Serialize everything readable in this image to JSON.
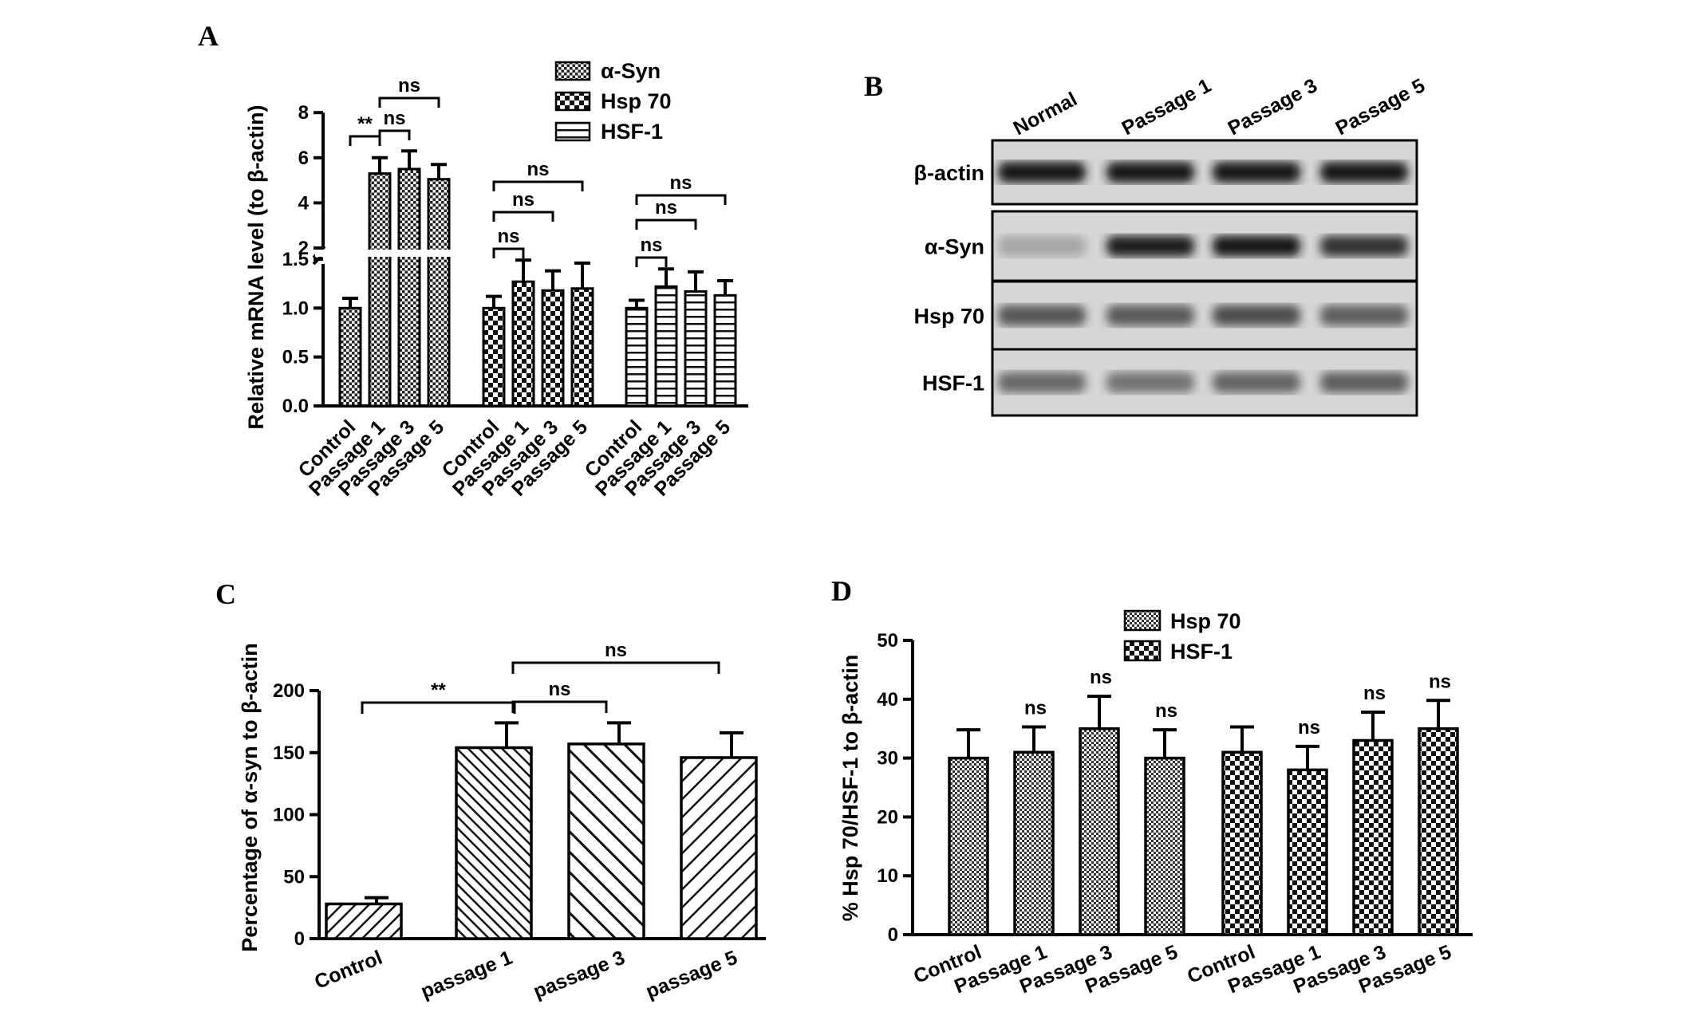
{
  "panels": {
    "A": "A",
    "B": "B",
    "C": "C",
    "D": "D"
  },
  "chart_data": [
    {
      "panel": "A",
      "type": "bar",
      "ylabel": "Relative mRNA level (to β-actin)",
      "y_axis_break": true,
      "y_ticks_lower": [
        "0.0",
        "0.5",
        "1.0",
        "1.5"
      ],
      "y_ticks_upper": [
        "2",
        "4",
        "6",
        "8"
      ],
      "categories": [
        "Control",
        "Passage 1",
        "Passage 3",
        "Passage 5"
      ],
      "legend": [
        "α-Syn",
        "Hsp 70",
        "HSF-1"
      ],
      "series": [
        {
          "name": "α-Syn",
          "values": [
            1.0,
            5.3,
            5.5,
            5.05
          ],
          "errors": [
            0.1,
            0.7,
            0.8,
            0.65
          ]
        },
        {
          "name": "Hsp 70",
          "values": [
            1.0,
            1.27,
            1.18,
            1.2
          ],
          "errors": [
            0.12,
            0.22,
            0.2,
            0.26
          ]
        },
        {
          "name": "HSF-1",
          "values": [
            1.0,
            1.22,
            1.17,
            1.13
          ],
          "errors": [
            0.08,
            0.18,
            0.2,
            0.15
          ]
        }
      ],
      "significance": [
        {
          "series": 0,
          "from": 0,
          "to": 1,
          "label": "**"
        },
        {
          "series": 0,
          "from": 1,
          "to": 2,
          "label": "ns"
        },
        {
          "series": 0,
          "from": 1,
          "to": 3,
          "label": "ns"
        },
        {
          "series": 1,
          "from": 0,
          "to": 1,
          "label": "ns"
        },
        {
          "series": 1,
          "from": 0,
          "to": 2,
          "label": "ns"
        },
        {
          "series": 1,
          "from": 0,
          "to": 3,
          "label": "ns"
        },
        {
          "series": 2,
          "from": 0,
          "to": 1,
          "label": "ns"
        },
        {
          "series": 2,
          "from": 0,
          "to": 2,
          "label": "ns"
        },
        {
          "series": 2,
          "from": 0,
          "to": 3,
          "label": "ns"
        }
      ]
    },
    {
      "panel": "B",
      "type": "table",
      "lanes": [
        "Normal",
        "Passage 1",
        "Passage 3",
        "Passage 5"
      ],
      "rows": [
        "β-actin",
        "α-Syn",
        "Hsp 70",
        "HSF-1"
      ],
      "band_intensity": [
        [
          0.95,
          0.95,
          0.95,
          0.95
        ],
        [
          0.18,
          0.9,
          0.92,
          0.8
        ],
        [
          0.6,
          0.58,
          0.65,
          0.55
        ],
        [
          0.5,
          0.45,
          0.52,
          0.55
        ]
      ]
    },
    {
      "panel": "C",
      "type": "bar",
      "ylabel": "Percentage of  α-syn  to  β-actin",
      "ylim": [
        0,
        200
      ],
      "y_ticks": [
        "0",
        "50",
        "100",
        "150",
        "200"
      ],
      "categories": [
        "Control",
        "passage 1",
        "passage 3",
        "passage 5"
      ],
      "values": [
        28,
        154,
        157,
        146
      ],
      "errors": [
        5,
        20,
        17,
        20
      ],
      "significance": [
        {
          "from": 0,
          "to": 1,
          "label": "**"
        },
        {
          "from": 1,
          "to": 2,
          "label": "ns"
        },
        {
          "from": 1,
          "to": 3,
          "label": "ns"
        }
      ]
    },
    {
      "panel": "D",
      "type": "bar",
      "ylabel": "% Hsp 70/HSF-1 to  β-actin",
      "ylim": [
        0,
        50
      ],
      "y_ticks": [
        "0",
        "10",
        "20",
        "30",
        "40",
        "50"
      ],
      "categories": [
        "Control",
        "Passage 1",
        "Passage 3",
        "Passage 5"
      ],
      "legend": [
        "Hsp 70",
        "HSF-1"
      ],
      "series": [
        {
          "name": "Hsp 70",
          "values": [
            30,
            31,
            35,
            30
          ],
          "errors": [
            4.8,
            4.3,
            5.5,
            4.8
          ]
        },
        {
          "name": "HSF-1",
          "values": [
            31,
            28,
            33,
            35
          ],
          "errors": [
            4.3,
            4,
            4.8,
            4.8
          ]
        }
      ],
      "significance_labels": [
        null,
        "ns",
        "ns",
        "ns"
      ]
    }
  ]
}
